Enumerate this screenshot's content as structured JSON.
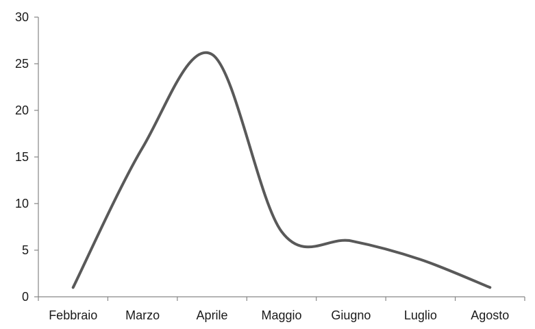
{
  "chart_data": {
    "type": "line",
    "categories": [
      "Febbraio",
      "Marzo",
      "Aprile",
      "Maggio",
      "Giugno",
      "Luglio",
      "Agosto"
    ],
    "series": [
      {
        "values": [
          1,
          16,
          26,
          7,
          6,
          4,
          1
        ]
      }
    ],
    "ylim": [
      0,
      30
    ],
    "yticks": [
      0,
      5,
      10,
      15,
      20,
      25,
      30
    ],
    "title": "",
    "xlabel": "",
    "ylabel": "",
    "grid": false,
    "smooth": true,
    "line_color": "#595959",
    "axis_color": "#868686"
  }
}
